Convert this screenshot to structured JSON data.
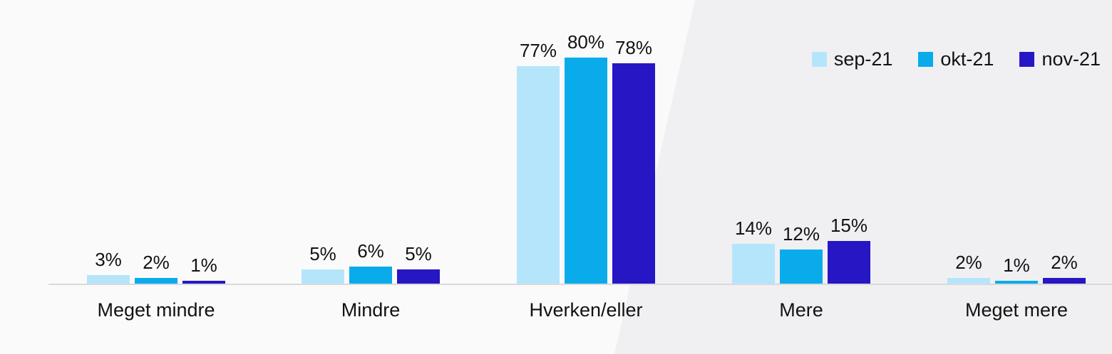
{
  "chart_data": {
    "type": "bar",
    "title": "",
    "xlabel": "",
    "ylabel": "",
    "categories": [
      "Meget mindre",
      "Mindre",
      "Hverken/eller",
      "Mere",
      "Meget mere"
    ],
    "series": [
      {
        "name": "sep-21",
        "color": "#B5E5FB",
        "values": [
          3,
          5,
          77,
          14,
          2
        ]
      },
      {
        "name": "okt-21",
        "color": "#09ABEB",
        "values": [
          2,
          6,
          80,
          12,
          1
        ]
      },
      {
        "name": "nov-21",
        "color": "#2716C4",
        "values": [
          1,
          5,
          78,
          15,
          2
        ]
      }
    ],
    "value_labels": [
      [
        "3%",
        "5%",
        "77%",
        "14%",
        "2%"
      ],
      [
        "2%",
        "6%",
        "80%",
        "12%",
        "1%"
      ],
      [
        "1%",
        "5%",
        "78%",
        "15%",
        "2%"
      ]
    ],
    "value_label_suffix": "%",
    "ylim": [
      0,
      100
    ],
    "grid": false,
    "legend_position": "top-right",
    "legend_entries": [
      "sep-21",
      "okt-21",
      "nov-21"
    ]
  },
  "colors": {
    "background_left": "#FAFAFB",
    "background_right": "#F0F0F2",
    "axis_line": "#D9D9DB",
    "text": "#121212"
  }
}
